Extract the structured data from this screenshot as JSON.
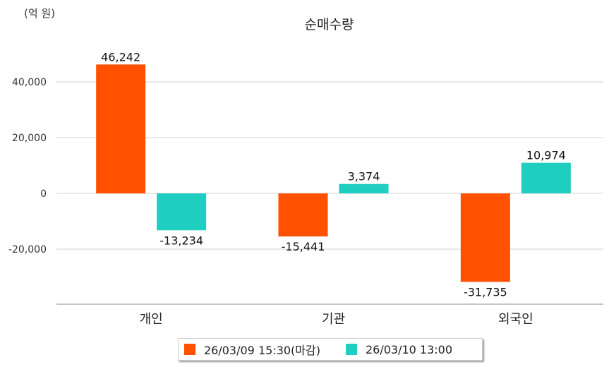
{
  "chart_data": {
    "type": "bar",
    "title": "순매수량",
    "unit_label": "(억 원)",
    "categories": [
      "개인",
      "기관",
      "외국인"
    ],
    "series": [
      {
        "name": "26/03/09 15:30(마감)",
        "color": "#ff5100",
        "values": [
          46242,
          -15441,
          -31735
        ],
        "labels": [
          "46,242",
          "-15,441",
          "-31,735"
        ]
      },
      {
        "name": "26/03/10 13:00",
        "color": "#1ecebe",
        "values": [
          -13234,
          3374,
          10974
        ],
        "labels": [
          "-13,234",
          "3,374",
          "10,974"
        ]
      }
    ],
    "yticks": [
      40000,
      20000,
      0,
      -20000
    ],
    "ytick_labels": [
      "40,000",
      "20,000",
      "0",
      "-20,000"
    ],
    "ylim": [
      -39000,
      60000
    ],
    "grid": true,
    "legend_position": "bottom"
  }
}
